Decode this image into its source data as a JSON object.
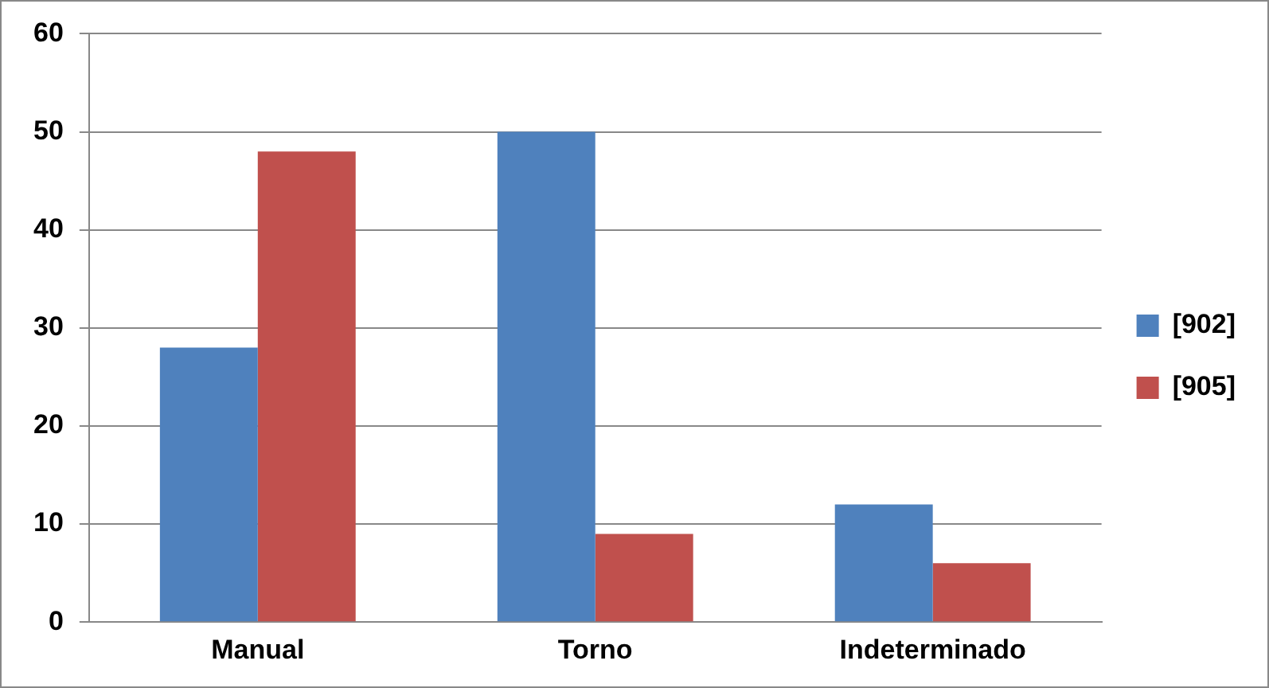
{
  "chart_data": {
    "type": "bar",
    "categories": [
      "Manual",
      "Torno",
      "Indeterminado"
    ],
    "series": [
      {
        "name": "[902]",
        "color": "#4f81bd",
        "values": [
          28,
          50,
          12
        ]
      },
      {
        "name": "[905]",
        "color": "#c0504d",
        "values": [
          48,
          9,
          6
        ]
      }
    ],
    "ylim": [
      0,
      60
    ],
    "yticks": [
      0,
      10,
      20,
      30,
      40,
      50,
      60
    ],
    "grid": "y",
    "legend": "right"
  }
}
